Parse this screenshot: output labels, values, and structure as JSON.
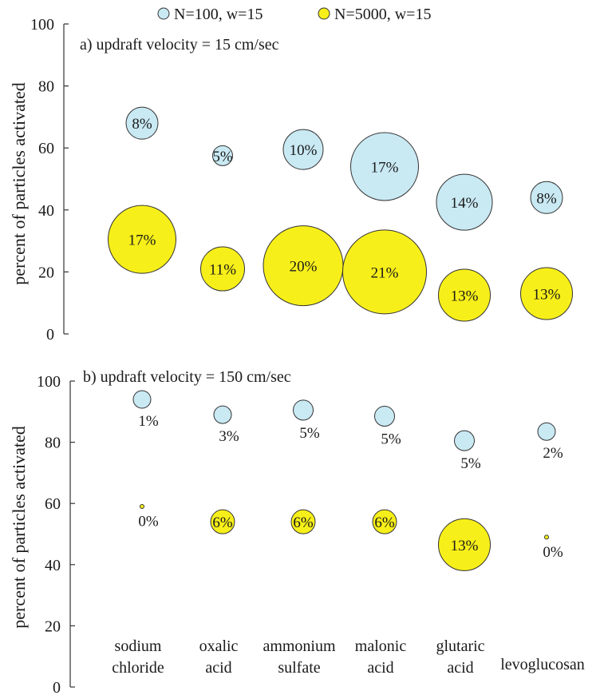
{
  "legend": [
    {
      "label": "N=100, w=15",
      "color": "#c9e9f3"
    },
    {
      "label": "N=5000, w=15",
      "color": "#f7ef19"
    }
  ],
  "categories": [
    [
      "sodium",
      "chloride"
    ],
    [
      "oxalic",
      "acid"
    ],
    [
      "ammonium",
      "sulfate"
    ],
    [
      "malonic",
      "acid"
    ],
    [
      "glutaric",
      "acid"
    ],
    [
      "levoglucosan"
    ]
  ],
  "chart_data": [
    {
      "type": "scatter",
      "title": "a) updraft velocity  = 15 cm/sec",
      "ylabel": "percent of particles activated",
      "ylim": [
        0,
        100
      ],
      "yticks": [
        "0",
        "20",
        "40",
        "60",
        "80",
        "100"
      ],
      "grid": false,
      "series": [
        {
          "name": "N=100, w=15",
          "color": "#c9e9f3",
          "y": [
            68,
            57.5,
            59.5,
            54,
            42.5,
            44
          ],
          "size_labels": [
            "8%",
            "5%",
            "10%",
            "17%",
            "14%",
            "8%"
          ],
          "size_pct": [
            8,
            5,
            10,
            17,
            14,
            8
          ]
        },
        {
          "name": "N=5000, w=15",
          "color": "#f7ef19",
          "y": [
            30.5,
            21,
            22,
            20,
            12.5,
            13
          ],
          "size_labels": [
            "17%",
            "11%",
            "20%",
            "21%",
            "13%",
            "13%"
          ],
          "size_pct": [
            17,
            11,
            20,
            21,
            13,
            13
          ]
        }
      ]
    },
    {
      "type": "scatter",
      "title": "b) updraft velocity = 150 cm/sec",
      "ylabel": "percent of particles activated",
      "ylim": [
        0,
        100
      ],
      "yticks": [
        "0",
        "20",
        "40",
        "60",
        "80",
        "100"
      ],
      "grid": false,
      "series": [
        {
          "name": "N=100, w=15",
          "color": "#c9e9f3",
          "y": [
            94,
            89,
            90.5,
            88.5,
            80.5,
            83.5
          ],
          "size_labels": [
            "1%",
            "3%",
            "5%",
            "5%",
            "5%",
            "2%"
          ],
          "size_pct": [
            1,
            3,
            5,
            5,
            5,
            2
          ]
        },
        {
          "name": "N=5000, w=15",
          "color": "#f7ef19",
          "y": [
            59,
            54,
            54,
            54,
            46.5,
            49
          ],
          "size_labels": [
            "0%",
            "6%",
            "6%",
            "6%",
            "13%",
            "0%"
          ],
          "size_pct": [
            0,
            6,
            6,
            6,
            13,
            0
          ]
        }
      ]
    }
  ]
}
